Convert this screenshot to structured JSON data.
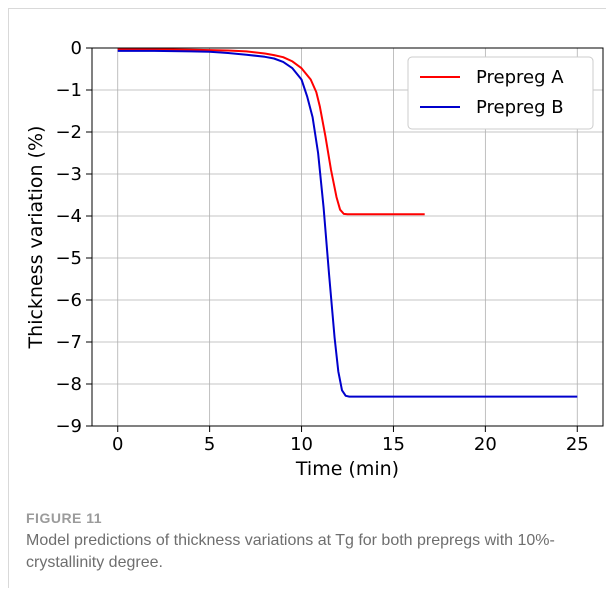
{
  "chart_data": {
    "type": "line",
    "xlabel": "Time (min)",
    "ylabel": "Thickness variation (%)",
    "xlim": [
      -1.4,
      26.4
    ],
    "ylim": [
      -9,
      0
    ],
    "xticks": [
      0,
      5,
      10,
      15,
      20,
      25
    ],
    "yticks": [
      0,
      -1,
      -2,
      -3,
      -4,
      -5,
      -6,
      -7,
      -8,
      -9
    ],
    "xtick_labels": [
      "0",
      "5",
      "10",
      "15",
      "20",
      "25"
    ],
    "ytick_labels": [
      "0",
      "−1",
      "−2",
      "−3",
      "−4",
      "−5",
      "−6",
      "−7",
      "−8",
      "−9"
    ],
    "grid": true,
    "legend_position": "top-right",
    "series": [
      {
        "name": "Prepreg A",
        "color": "#ff0000",
        "x": [
          0,
          2,
          4,
          6,
          7,
          8,
          8.5,
          9,
          9.5,
          10,
          10.5,
          10.8,
          11,
          11.3,
          11.6,
          11.9,
          12.1,
          12.3,
          12.5,
          13,
          14,
          15,
          16,
          16.7
        ],
        "y": [
          -0.03,
          -0.03,
          -0.04,
          -0.06,
          -0.08,
          -0.13,
          -0.17,
          -0.22,
          -0.32,
          -0.48,
          -0.75,
          -1.05,
          -1.4,
          -2.1,
          -2.9,
          -3.55,
          -3.85,
          -3.95,
          -3.96,
          -3.96,
          -3.96,
          -3.96,
          -3.96,
          -3.96
        ]
      },
      {
        "name": "Prepreg B",
        "color": "#0000cc",
        "x": [
          0,
          2,
          4,
          5,
          6,
          7,
          8,
          8.5,
          9,
          9.5,
          10,
          10.3,
          10.6,
          10.9,
          11.2,
          11.5,
          11.8,
          12.0,
          12.2,
          12.4,
          12.6,
          13,
          15,
          17,
          20,
          23,
          25
        ],
        "y": [
          -0.07,
          -0.07,
          -0.08,
          -0.09,
          -0.12,
          -0.16,
          -0.21,
          -0.25,
          -0.33,
          -0.48,
          -0.75,
          -1.15,
          -1.65,
          -2.5,
          -3.8,
          -5.4,
          -6.9,
          -7.7,
          -8.15,
          -8.28,
          -8.3,
          -8.3,
          -8.3,
          -8.3,
          -8.3,
          -8.3,
          -8.3
        ]
      }
    ]
  },
  "caption": {
    "label": "FIGURE 11",
    "text": "Model predictions of thickness variations at Tg for both prepregs with 10%-crystallinity degree."
  }
}
